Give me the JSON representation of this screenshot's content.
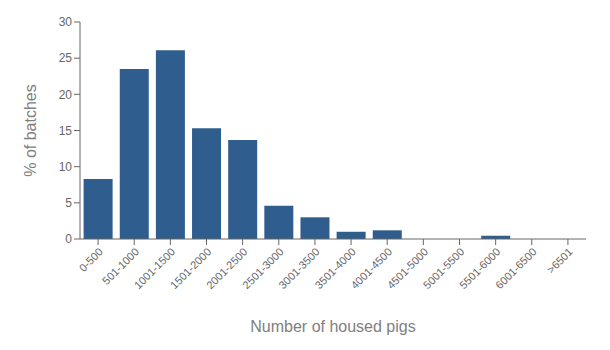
{
  "chart_data": {
    "type": "bar",
    "categories": [
      "0-500",
      "501-1000",
      "1001-1500",
      "1501-2000",
      "2001-2500",
      "2501-3000",
      "3001-3500",
      "3501-4000",
      "4001-4500",
      "4501-5000",
      "5001-5500",
      "5501-6000",
      "6001-6500",
      ">6501"
    ],
    "values": [
      8.3,
      23.5,
      26.1,
      15.3,
      13.7,
      4.6,
      3.0,
      1.0,
      1.2,
      0.0,
      0.0,
      0.45,
      0.0,
      0.0
    ],
    "color": "#2E5D8E",
    "xlabel": "Number of housed pigs",
    "ylabel": "% of batches",
    "ylim": [
      0,
      30
    ],
    "yticks": [
      0,
      5,
      10,
      15,
      20,
      25,
      30
    ],
    "grid": false
  }
}
